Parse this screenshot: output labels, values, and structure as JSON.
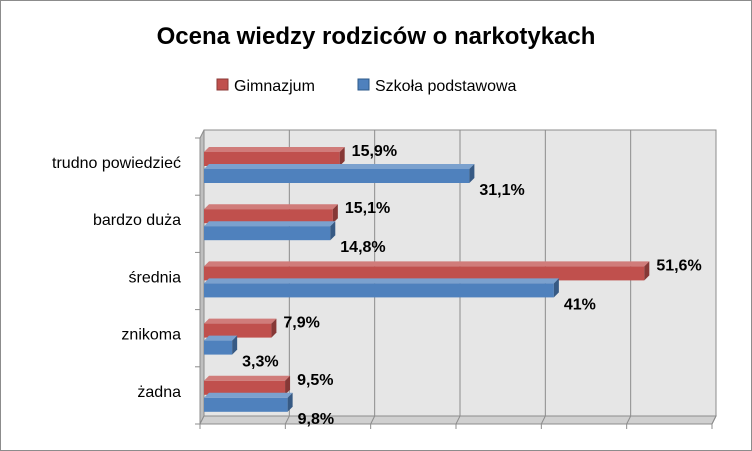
{
  "chart_data": {
    "type": "bar",
    "orientation": "horizontal",
    "title": "Ocena wiedzy rodziców o narkotykach",
    "categories": [
      "trudno powiedzieć",
      "bardzo duża",
      "średnia",
      "znikoma",
      "żadna"
    ],
    "series": [
      {
        "name": "Gimnazjum",
        "color": "#C0504D",
        "values": [
          15.9,
          15.1,
          51.6,
          7.9,
          9.5
        ],
        "labels": [
          "15,9%",
          "15,1%",
          "51,6%",
          "7,9%",
          "9,5%"
        ]
      },
      {
        "name": "Szkoła podstawowa",
        "color": "#4F81BD",
        "values": [
          31.1,
          14.8,
          41,
          3.3,
          9.8
        ],
        "labels": [
          "31,1%",
          "14,8%",
          "41%",
          "3,3%",
          "9,8%"
        ]
      }
    ],
    "xlim": [
      0,
      60
    ],
    "grid": true,
    "legend_position": "top",
    "style": "3d"
  }
}
